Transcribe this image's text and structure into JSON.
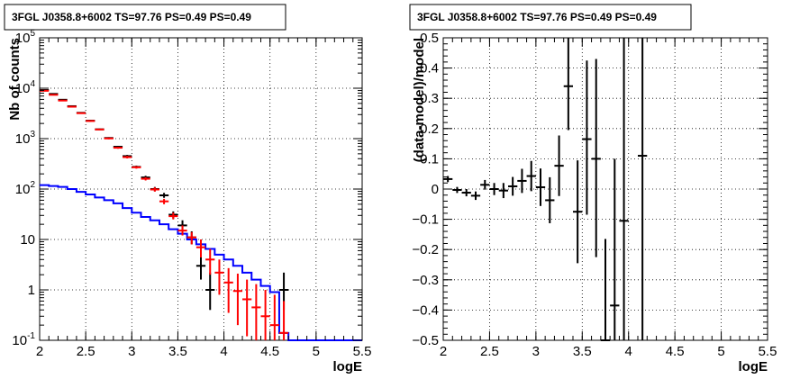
{
  "chart_data": [
    {
      "type": "histogram",
      "title": "3FGL J0358.8+6002 TS=97.76 PS=0.49 PS=0.49",
      "xlabel": "logE",
      "ylabel": "Nb of counts",
      "xlim": [
        2,
        5.5
      ],
      "ylim": [
        0.1,
        100000
      ],
      "yscale": "log",
      "grid": true,
      "x_ticks": [
        "2",
        "2.5",
        "3",
        "3.5",
        "4",
        "4.5",
        "5",
        "5.5"
      ],
      "y_ticks": [
        {
          "v": 0.1,
          "mant": "10",
          "exp": "-1"
        },
        {
          "v": 1,
          "mant": "1",
          "exp": ""
        },
        {
          "v": 10,
          "mant": "10",
          "exp": ""
        },
        {
          "v": 100,
          "mant": "10",
          "exp": "2"
        },
        {
          "v": 1000,
          "mant": "10",
          "exp": "3"
        },
        {
          "v": 10000,
          "mant": "10",
          "exp": "4"
        },
        {
          "v": 100000,
          "mant": "10",
          "exp": "5"
        }
      ],
      "bin_edges": [
        2.0,
        2.1,
        2.2,
        2.3,
        2.4,
        2.5,
        2.6,
        2.7,
        2.8,
        2.9,
        3.0,
        3.1,
        3.2,
        3.3,
        3.4,
        3.5,
        3.6,
        3.7,
        3.8,
        3.9,
        4.0,
        4.1,
        4.2,
        4.3,
        4.4,
        4.5,
        4.6,
        4.7,
        4.8,
        4.9,
        5.0,
        5.1,
        5.2,
        5.3,
        5.4,
        5.5
      ],
      "series": [
        {
          "name": "",
          "color": "#000000",
          "style": "points",
          "points": [
            {
              "x": 2.05,
              "y": 9200,
              "lo": 9050,
              "hi": 9350
            },
            {
              "x": 2.15,
              "y": 7700,
              "lo": 7560,
              "hi": 7840
            },
            {
              "x": 2.25,
              "y": 5900,
              "lo": 5780,
              "hi": 6020
            },
            {
              "x": 2.35,
              "y": 4400,
              "lo": 4300,
              "hi": 4500
            },
            {
              "x": 2.45,
              "y": 3250,
              "lo": 3170,
              "hi": 3330
            },
            {
              "x": 2.55,
              "y": 2270,
              "lo": 2200,
              "hi": 2340
            },
            {
              "x": 2.65,
              "y": 1530,
              "lo": 1480,
              "hi": 1580
            },
            {
              "x": 2.75,
              "y": 1030,
              "lo": 990,
              "hi": 1070
            },
            {
              "x": 2.85,
              "y": 690,
              "lo": 660,
              "hi": 720
            },
            {
              "x": 2.95,
              "y": 450,
              "lo": 425,
              "hi": 475
            },
            {
              "x": 3.05,
              "y": 275,
              "lo": 258,
              "hi": 292
            },
            {
              "x": 3.15,
              "y": 170,
              "lo": 157,
              "hi": 183
            },
            {
              "x": 3.25,
              "y": 100,
              "lo": 90,
              "hi": 110
            },
            {
              "x": 3.35,
              "y": 75,
              "lo": 67,
              "hi": 84
            },
            {
              "x": 3.45,
              "y": 31,
              "lo": 26,
              "hi": 36
            },
            {
              "x": 3.55,
              "y": 19,
              "lo": 15,
              "hi": 24
            },
            {
              "x": 3.65,
              "y": 11,
              "lo": 8,
              "hi": 14.5
            },
            {
              "x": 3.75,
              "y": 3,
              "lo": 1.6,
              "hi": 4.8
            },
            {
              "x": 3.85,
              "y": 1,
              "lo": 0.4,
              "hi": 2.2
            },
            {
              "x": 4.65,
              "y": 1,
              "lo": 0.4,
              "hi": 2.2
            }
          ]
        },
        {
          "name": "",
          "color": "#ff0000",
          "style": "points",
          "points": [
            {
              "x": 2.05,
              "y": 8900,
              "lo": 8750,
              "hi": 9050
            },
            {
              "x": 2.15,
              "y": 7400,
              "lo": 7270,
              "hi": 7530
            },
            {
              "x": 2.25,
              "y": 5700,
              "lo": 5580,
              "hi": 5820
            },
            {
              "x": 2.35,
              "y": 4300,
              "lo": 4200,
              "hi": 4400
            },
            {
              "x": 2.45,
              "y": 3200,
              "lo": 3120,
              "hi": 3280
            },
            {
              "x": 2.55,
              "y": 2240,
              "lo": 2170,
              "hi": 2310
            },
            {
              "x": 2.65,
              "y": 1520,
              "lo": 1470,
              "hi": 1570
            },
            {
              "x": 2.75,
              "y": 1010,
              "lo": 970,
              "hi": 1050
            },
            {
              "x": 2.85,
              "y": 660,
              "lo": 630,
              "hi": 690
            },
            {
              "x": 2.95,
              "y": 430,
              "lo": 405,
              "hi": 455
            },
            {
              "x": 3.05,
              "y": 270,
              "lo": 254,
              "hi": 286
            },
            {
              "x": 3.15,
              "y": 160,
              "lo": 148,
              "hi": 172
            },
            {
              "x": 3.25,
              "y": 98,
              "lo": 89,
              "hi": 108
            },
            {
              "x": 3.35,
              "y": 57,
              "lo": 50,
              "hi": 64
            },
            {
              "x": 3.45,
              "y": 29,
              "lo": 25,
              "hi": 34
            },
            {
              "x": 3.55,
              "y": 15,
              "lo": 12,
              "hi": 19
            },
            {
              "x": 3.65,
              "y": 11,
              "lo": 8,
              "hi": 14
            },
            {
              "x": 3.75,
              "y": 7,
              "lo": 4.4,
              "hi": 10
            },
            {
              "x": 3.85,
              "y": 4,
              "lo": 2,
              "hi": 6.5
            },
            {
              "x": 3.95,
              "y": 2.2,
              "lo": 0.8,
              "hi": 4
            },
            {
              "x": 4.05,
              "y": 1.4,
              "lo": 0.35,
              "hi": 2.7
            },
            {
              "x": 4.15,
              "y": 0.95,
              "lo": 0.2,
              "hi": 2.1
            },
            {
              "x": 4.25,
              "y": 0.65,
              "lo": 0.12,
              "hi": 1.6
            },
            {
              "x": 4.35,
              "y": 0.45,
              "lo": 0.1,
              "hi": 1.3
            },
            {
              "x": 4.45,
              "y": 0.3,
              "lo": 0.1,
              "hi": 1.0
            },
            {
              "x": 4.55,
              "y": 0.2,
              "lo": 0.1,
              "hi": 0.8
            },
            {
              "x": 4.65,
              "y": 0.14,
              "lo": 0.1,
              "hi": 0.6
            }
          ]
        },
        {
          "name": "",
          "color": "#0000ff",
          "style": "step",
          "values": [
            120,
            115,
            110,
            100,
            88,
            78,
            68,
            60,
            52,
            42,
            34,
            28,
            24,
            20,
            16,
            13,
            10,
            8,
            6.5,
            5,
            4,
            3,
            2.2,
            1.6,
            1.2,
            0.9,
            0.14,
            0.1,
            0.1,
            0.1,
            0.1,
            0.1,
            0.1,
            0.1,
            0.1
          ]
        }
      ]
    },
    {
      "type": "scatter",
      "title": "3FGL J0358.8+6002 TS=97.76 PS=0.49 PS=0.49",
      "xlabel": "logE",
      "ylabel": "(data-model)/model",
      "xlim": [
        2,
        5.5
      ],
      "ylim": [
        -0.5,
        0.5
      ],
      "grid": true,
      "x_ticks": [
        "2",
        "2.5",
        "3",
        "3.5",
        "4",
        "4.5",
        "5",
        "5.5"
      ],
      "y_ticks": [
        "0.5",
        "0.4",
        "0.3",
        "0.2",
        "0.1",
        "0",
        "−0.1",
        "−0.2",
        "−0.3",
        "−0.4",
        "−0.5"
      ],
      "series": [
        {
          "name": "",
          "color": "#000000",
          "points": [
            {
              "x": 2.05,
              "y": 0.033,
              "lo": 0.023,
              "hi": 0.043
            },
            {
              "x": 2.15,
              "y": -0.003,
              "lo": -0.013,
              "hi": 0.007
            },
            {
              "x": 2.25,
              "y": -0.012,
              "lo": -0.024,
              "hi": 0.0
            },
            {
              "x": 2.35,
              "y": -0.022,
              "lo": -0.036,
              "hi": -0.008
            },
            {
              "x": 2.45,
              "y": 0.014,
              "lo": -0.002,
              "hi": 0.03
            },
            {
              "x": 2.55,
              "y": 0.0,
              "lo": -0.02,
              "hi": 0.02
            },
            {
              "x": 2.65,
              "y": -0.005,
              "lo": -0.03,
              "hi": 0.02
            },
            {
              "x": 2.75,
              "y": 0.009,
              "lo": -0.022,
              "hi": 0.04
            },
            {
              "x": 2.85,
              "y": 0.027,
              "lo": -0.013,
              "hi": 0.067
            },
            {
              "x": 2.95,
              "y": 0.043,
              "lo": -0.007,
              "hi": 0.093
            },
            {
              "x": 3.05,
              "y": 0.006,
              "lo": -0.056,
              "hi": 0.068
            },
            {
              "x": 3.15,
              "y": -0.037,
              "lo": -0.113,
              "hi": 0.039
            },
            {
              "x": 3.25,
              "y": 0.077,
              "lo": -0.023,
              "hi": 0.177
            },
            {
              "x": 3.35,
              "y": 0.34,
              "lo": 0.195,
              "hi": 0.5
            },
            {
              "x": 3.45,
              "y": -0.075,
              "lo": -0.245,
              "hi": 0.095
            },
            {
              "x": 3.55,
              "y": 0.165,
              "lo": -0.085,
              "hi": 0.425
            },
            {
              "x": 3.65,
              "y": 0.1,
              "lo": -0.225,
              "hi": 0.43
            },
            {
              "x": 3.75,
              "y": -0.5,
              "lo": -0.5,
              "hi": -0.165
            },
            {
              "x": 3.85,
              "y": -0.385,
              "lo": -0.5,
              "hi": 0.1
            },
            {
              "x": 3.95,
              "y": -0.105,
              "lo": -0.5,
              "hi": 0.5
            },
            {
              "x": 4.15,
              "y": 0.11,
              "lo": -0.5,
              "hi": 0.5
            }
          ]
        }
      ]
    }
  ]
}
